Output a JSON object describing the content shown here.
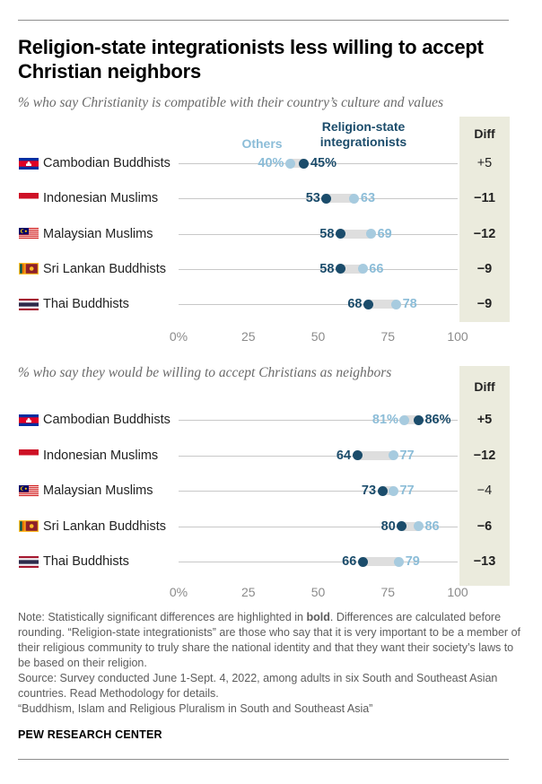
{
  "title": "Religion-state integrationists less willing to accept Christian neighbors",
  "legend": {
    "others": "Others",
    "integrationists": "Religion-state integrationists"
  },
  "diff_header": "Diff",
  "colors": {
    "integrationists": "#1b4c6b",
    "others": "#a7cbdf",
    "others_text": "#8cbdd8",
    "diff_band": "#ebebdd"
  },
  "axis_ticks": [
    "0%",
    "25",
    "50",
    "75",
    "100"
  ],
  "panels": [
    {
      "subtitle": "% who say Christianity is compatible with their country’s culture and values",
      "rows": [
        {
          "label": "Cambodian Buddhists",
          "flag": "cambodia-flag-icon",
          "others": 40,
          "others_label": "40%",
          "integrationists": 45,
          "integrationists_label": "45%",
          "diff": "+5",
          "significant": false
        },
        {
          "label": "Indonesian Muslims",
          "flag": "indonesia-flag-icon",
          "others": 63,
          "others_label": "63",
          "integrationists": 53,
          "integrationists_label": "53",
          "diff": "−11",
          "significant": true
        },
        {
          "label": "Malaysian Muslims",
          "flag": "malaysia-flag-icon",
          "others": 69,
          "others_label": "69",
          "integrationists": 58,
          "integrationists_label": "58",
          "diff": "−12",
          "significant": true
        },
        {
          "label": "Sri Lankan Buddhists",
          "flag": "sri-lanka-flag-icon",
          "others": 66,
          "others_label": "66",
          "integrationists": 58,
          "integrationists_label": "58",
          "diff": "−9",
          "significant": true
        },
        {
          "label": "Thai Buddhists",
          "flag": "thailand-flag-icon",
          "others": 78,
          "others_label": "78",
          "integrationists": 68,
          "integrationists_label": "68",
          "diff": "−9",
          "significant": true
        }
      ]
    },
    {
      "subtitle": "% who say they would be willing to accept Christians as neighbors",
      "rows": [
        {
          "label": "Cambodian Buddhists",
          "flag": "cambodia-flag-icon",
          "others": 81,
          "others_label": "81%",
          "integrationists": 86,
          "integrationists_label": "86%",
          "diff": "+5",
          "significant": true
        },
        {
          "label": "Indonesian Muslims",
          "flag": "indonesia-flag-icon",
          "others": 77,
          "others_label": "77",
          "integrationists": 64,
          "integrationists_label": "64",
          "diff": "−12",
          "significant": true
        },
        {
          "label": "Malaysian Muslims",
          "flag": "malaysia-flag-icon",
          "others": 77,
          "others_label": "77",
          "integrationists": 73,
          "integrationists_label": "73",
          "diff": "−4",
          "significant": false
        },
        {
          "label": "Sri Lankan Buddhists",
          "flag": "sri-lanka-flag-icon",
          "others": 86,
          "others_label": "86",
          "integrationists": 80,
          "integrationists_label": "80",
          "diff": "−6",
          "significant": true
        },
        {
          "label": "Thai Buddhists",
          "flag": "thailand-flag-icon",
          "others": 79,
          "others_label": "79",
          "integrationists": 66,
          "integrationists_label": "66",
          "diff": "−13",
          "significant": true
        }
      ]
    }
  ],
  "chart_data": [
    {
      "type": "dot",
      "title": "% who say Christianity is compatible with their country’s culture and values",
      "categories": [
        "Cambodian Buddhists",
        "Indonesian Muslims",
        "Malaysian Muslims",
        "Sri Lankan Buddhists",
        "Thai Buddhists"
      ],
      "series": [
        {
          "name": "Others",
          "values": [
            40,
            63,
            69,
            66,
            78
          ]
        },
        {
          "name": "Religion-state integrationists",
          "values": [
            45,
            53,
            58,
            58,
            68
          ]
        }
      ],
      "diff": [
        "+5",
        "−11",
        "−12",
        "−9",
        "−9"
      ],
      "xlim": [
        0,
        100
      ]
    },
    {
      "type": "dot",
      "title": "% who say they would be willing to accept Christians as neighbors",
      "categories": [
        "Cambodian Buddhists",
        "Indonesian Muslims",
        "Malaysian Muslims",
        "Sri Lankan Buddhists",
        "Thai Buddhists"
      ],
      "series": [
        {
          "name": "Others",
          "values": [
            81,
            77,
            77,
            86,
            79
          ]
        },
        {
          "name": "Religion-state integrationists",
          "values": [
            86,
            64,
            73,
            80,
            66
          ]
        }
      ],
      "diff": [
        "+5",
        "−12",
        "−4",
        "−6",
        "−13"
      ],
      "xlim": [
        0,
        100
      ]
    }
  ],
  "note": {
    "prefix": "Note: Statistically significant differences are highlighted in ",
    "bold_word": "bold",
    "rest": ". Differences are calculated before rounding. “Religion-state integrationists” are those who say that it is very important to be a member of their religious community to truly share the national identity and that they want their society’s laws to be based on their religion.",
    "source": "Source: Survey conducted June 1-Sept. 4, 2022, among adults in six South and Southeast Asian countries. Read Methodology for details.",
    "report": "“Buddhism, Islam and Religious Pluralism in South and Southeast Asia”"
  },
  "org": "PEW RESEARCH CENTER"
}
